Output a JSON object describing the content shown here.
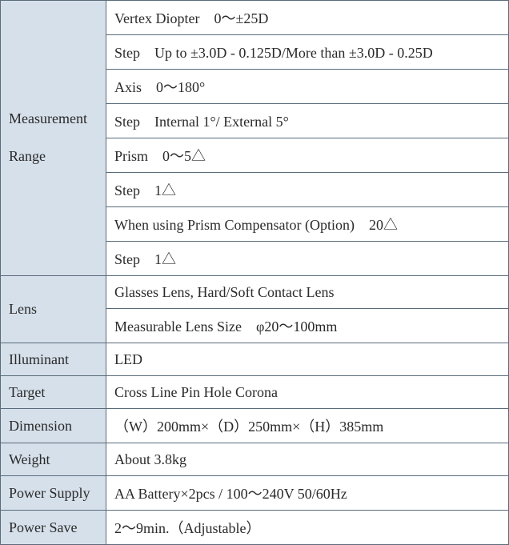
{
  "table": {
    "label_bg": "#d6e0ea",
    "value_bg": "#ffffff",
    "border_color": "#5a6b7a",
    "text_color": "#2a2a2a",
    "font_size": 18,
    "rows": [
      {
        "label": "Measurement Range",
        "rowspan": 8,
        "values": [
          "Vertex Diopter　0～±25D",
          "Step　Up to ±3.0D - 0.125D/More than ±3.0D - 0.25D",
          "Axis　0～180°",
          "Step　Internal 1°/  External 5°",
          "Prism　0～5△",
          "Step　1△",
          "When using Prism Compensator (Option)　20△",
          "Step　1△"
        ]
      },
      {
        "label": "Lens",
        "rowspan": 2,
        "values": [
          "Glasses Lens, Hard/Soft Contact Lens",
          "Measurable Lens Size　φ20～100mm"
        ]
      },
      {
        "label": "Illuminant",
        "rowspan": 1,
        "values": [
          "LED"
        ]
      },
      {
        "label": "Target",
        "rowspan": 1,
        "values": [
          "Cross Line Pin Hole Corona"
        ]
      },
      {
        "label": "Dimension",
        "rowspan": 1,
        "values": [
          "（W）200mm×（D）250mm×（H）385mm"
        ]
      },
      {
        "label": "Weight",
        "rowspan": 1,
        "values": [
          "About 3.8kg"
        ]
      },
      {
        "label": "Power Supply",
        "rowspan": 1,
        "values": [
          "AA Battery×2pcs / 100～240V   50/60Hz"
        ]
      },
      {
        "label": "Power Save",
        "rowspan": 1,
        "values": [
          "2～9min.（Adjustable）"
        ]
      }
    ]
  }
}
